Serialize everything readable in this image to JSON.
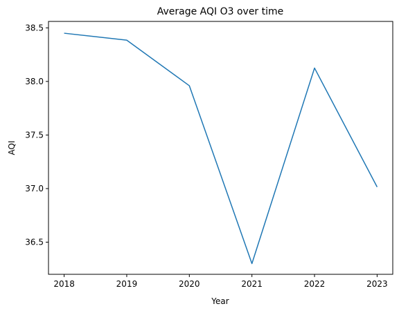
{
  "chart_data": {
    "type": "line",
    "title": "Average AQI O3 over time",
    "xlabel": "Year",
    "ylabel": "AQI",
    "x": [
      2018,
      2019,
      2020,
      2021,
      2022,
      2023
    ],
    "x_ticks": [
      "2018",
      "2019",
      "2020",
      "2021",
      "2022",
      "2023"
    ],
    "y_ticks": [
      "36.5",
      "37.0",
      "37.5",
      "38.0",
      "38.5"
    ],
    "y_tick_values": [
      36.5,
      37.0,
      37.5,
      38.0,
      38.5
    ],
    "ylim": [
      36.2,
      38.56
    ],
    "xlim": [
      2017.75,
      2023.25
    ],
    "grid": false,
    "series": [
      {
        "values": [
          38.45,
          38.385,
          37.96,
          36.3,
          38.125,
          37.015
        ],
        "color": "#1f77b4"
      }
    ]
  }
}
